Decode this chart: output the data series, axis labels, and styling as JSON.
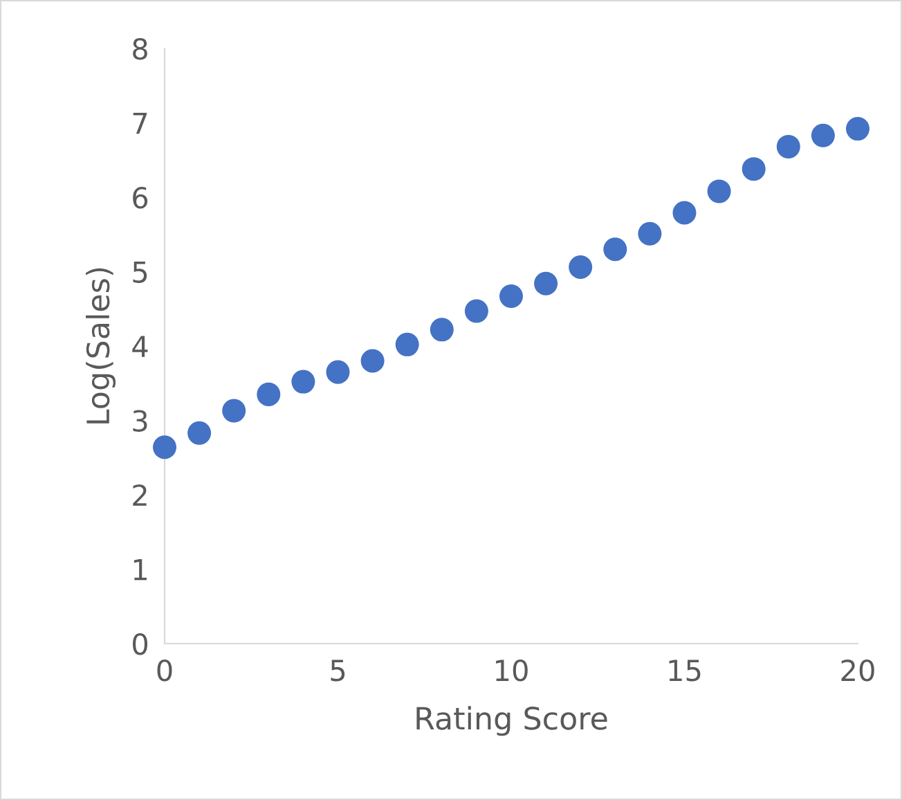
{
  "chart_data": {
    "type": "scatter",
    "xlabel": "Rating Score",
    "ylabel": "Log(Sales)",
    "x": [
      0,
      1,
      2,
      3,
      4,
      5,
      6,
      7,
      8,
      9,
      10,
      11,
      12,
      13,
      14,
      15,
      16,
      17,
      18,
      19,
      20
    ],
    "values": [
      2.64,
      2.83,
      3.13,
      3.35,
      3.52,
      3.65,
      3.8,
      4.02,
      4.22,
      4.47,
      4.67,
      4.84,
      5.06,
      5.3,
      5.51,
      5.79,
      6.08,
      6.38,
      6.68,
      6.83,
      6.92
    ],
    "color": "#4472c4",
    "marker": "circle",
    "xlim": [
      0,
      20
    ],
    "xticks": [
      0,
      5,
      10,
      15,
      20
    ],
    "ylim": [
      0,
      8
    ],
    "yticks": [
      0,
      1,
      2,
      3,
      4,
      5,
      6,
      7,
      8
    ],
    "grid": false,
    "legend": false
  }
}
